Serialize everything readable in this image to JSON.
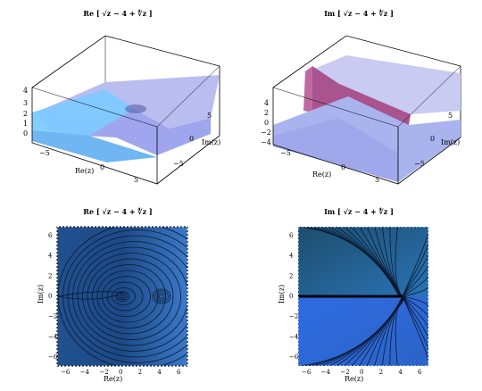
{
  "panels": {
    "top_left": {
      "title": "Re [ √z − 4 + ∜z ]",
      "ticks_z": [
        "4",
        "3",
        "2",
        "1",
        "0"
      ],
      "ticks_re": [
        "−5",
        "0",
        "5"
      ],
      "ticks_im": [
        "5",
        "0",
        "−5"
      ],
      "xlabel": "Re(z)",
      "ylabel": "Im(z)"
    },
    "top_right": {
      "title": "Im [ √z − 4 + ∜z ]",
      "ticks_z": [
        "4",
        "2",
        "0",
        "−2",
        "−4"
      ],
      "ticks_re": [
        "−5",
        "0",
        "5"
      ],
      "ticks_im": [
        "5",
        "0",
        "−5"
      ],
      "xlabel": "Re(z)",
      "ylabel": "Im(z)"
    },
    "bottom_left": {
      "title": "Re [ √z − 4 + ∜z ]",
      "xticks": [
        "−6",
        "−4",
        "−2",
        "0",
        "2",
        "4",
        "6"
      ],
      "yticks": [
        "6",
        "4",
        "2",
        "0",
        "−2",
        "−4",
        "−6"
      ],
      "xlabel": "Re(z)",
      "ylabel": "Im(z)"
    },
    "bottom_right": {
      "title": "Im [ √z − 4 + ∜z ]",
      "xticks": [
        "−6",
        "−4",
        "−2",
        "0",
        "2",
        "4",
        "6"
      ],
      "yticks": [
        "6",
        "4",
        "2",
        "0",
        "−2",
        "−4",
        "−6"
      ],
      "xlabel": "Re(z)",
      "ylabel": "Im(z)"
    }
  },
  "colors": {
    "surface_light": "#c8ccf4",
    "surface_dark": "#7e87e8",
    "plane_cyan": "#7fd1ff",
    "fin_magenta": "#b05c98",
    "contour_bg": "#2d63b7",
    "contour_dark": "#173a6b"
  }
}
